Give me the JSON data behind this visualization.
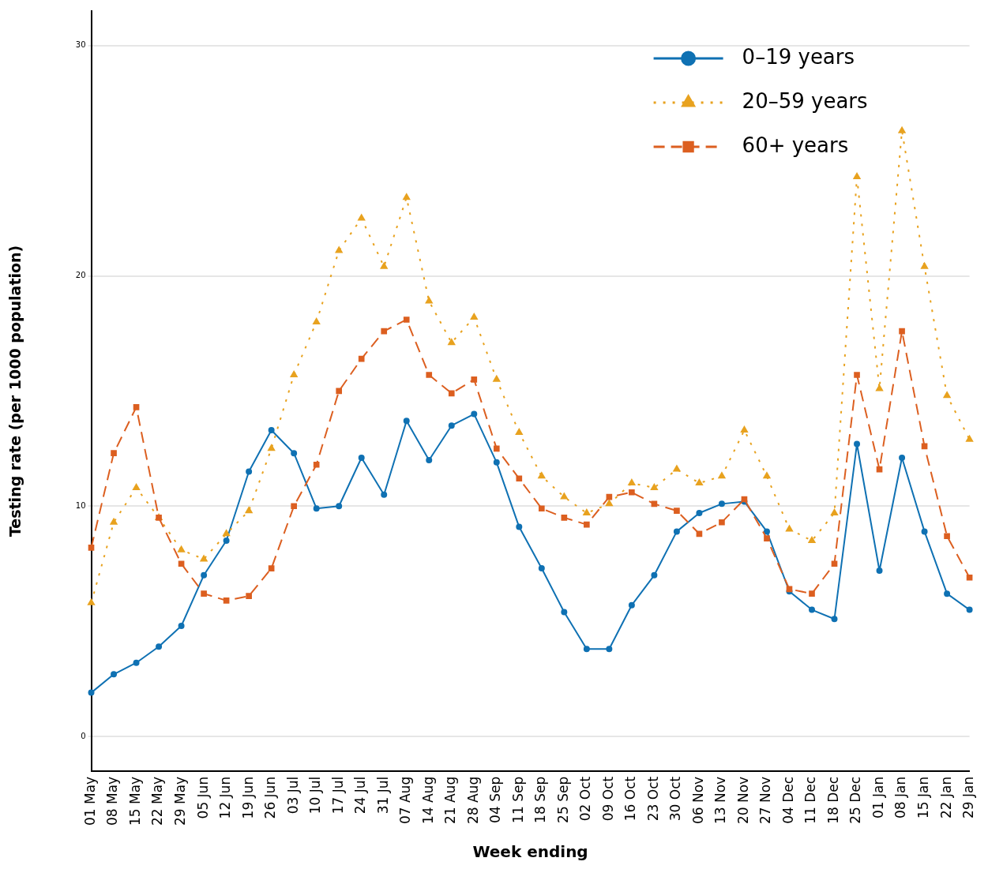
{
  "chart_data": {
    "type": "line",
    "xlabel": "Week ending",
    "ylabel": "Testing rate (per 1000 population)",
    "categories": [
      "01 May",
      "08 May",
      "15 May",
      "22 May",
      "29 May",
      "05 Jun",
      "12 Jun",
      "19 Jun",
      "26 Jun",
      "03 Jul",
      "10 Jul",
      "17 Jul",
      "24 Jul",
      "31 Jul",
      "07 Aug",
      "14 Aug",
      "21 Aug",
      "28 Aug",
      "04 Sep",
      "11 Sep",
      "18 Sep",
      "25 Sep",
      "02 Oct",
      "09 Oct",
      "16 Oct",
      "23 Oct",
      "30 Oct",
      "06 Nov",
      "13 Nov",
      "20 Nov",
      "27 Nov",
      "04 Dec",
      "11 Dec",
      "18 Dec",
      "25 Dec",
      "01 Jan",
      "08 Jan",
      "15 Jan",
      "22 Jan",
      "29 Jan"
    ],
    "series": [
      {
        "name": "0–19 years",
        "color": "#0f71b3",
        "marker": "circle",
        "line_style": "solid",
        "values": [
          1.9,
          2.7,
          3.2,
          3.9,
          4.8,
          7.0,
          8.5,
          11.5,
          13.3,
          12.3,
          9.9,
          10.0,
          12.1,
          10.5,
          13.7,
          12.0,
          13.5,
          14.0,
          11.9,
          9.1,
          7.3,
          5.4,
          3.8,
          3.8,
          5.7,
          7.0,
          8.9,
          9.7,
          10.1,
          10.2,
          8.9,
          6.3,
          5.5,
          5.1,
          12.7,
          7.2,
          12.1,
          8.9,
          6.2,
          5.5
        ]
      },
      {
        "name": "20–59 years",
        "color": "#e8a21f",
        "marker": "triangle",
        "line_style": "dotted",
        "values": [
          5.8,
          9.3,
          10.8,
          9.5,
          8.1,
          7.7,
          8.8,
          9.8,
          12.5,
          15.7,
          18.0,
          21.1,
          22.5,
          20.4,
          23.4,
          18.9,
          17.1,
          18.2,
          15.5,
          13.2,
          11.3,
          10.4,
          9.7,
          10.1,
          11.0,
          10.8,
          11.6,
          11.0,
          11.3,
          13.3,
          11.3,
          9.0,
          8.5,
          9.7,
          24.3,
          15.1,
          26.3,
          20.4,
          14.8,
          12.9
        ]
      },
      {
        "name": "60+ years",
        "color": "#dc5f20",
        "marker": "square",
        "line_style": "dashed",
        "values": [
          8.2,
          12.3,
          14.3,
          9.5,
          7.5,
          6.2,
          5.9,
          6.1,
          7.3,
          10.0,
          11.8,
          15.0,
          16.4,
          17.6,
          18.1,
          15.7,
          14.9,
          15.5,
          12.5,
          11.2,
          9.9,
          9.5,
          9.2,
          10.4,
          10.6,
          10.1,
          9.8,
          8.8,
          9.3,
          10.3,
          8.6,
          6.4,
          6.2,
          7.5,
          15.7,
          11.6,
          17.6,
          12.6,
          8.7,
          6.9
        ]
      }
    ],
    "ylim": [
      -1.5,
      31.5
    ],
    "yticks": [
      0,
      10,
      20,
      30
    ],
    "grid": "y",
    "legend": "top right"
  }
}
